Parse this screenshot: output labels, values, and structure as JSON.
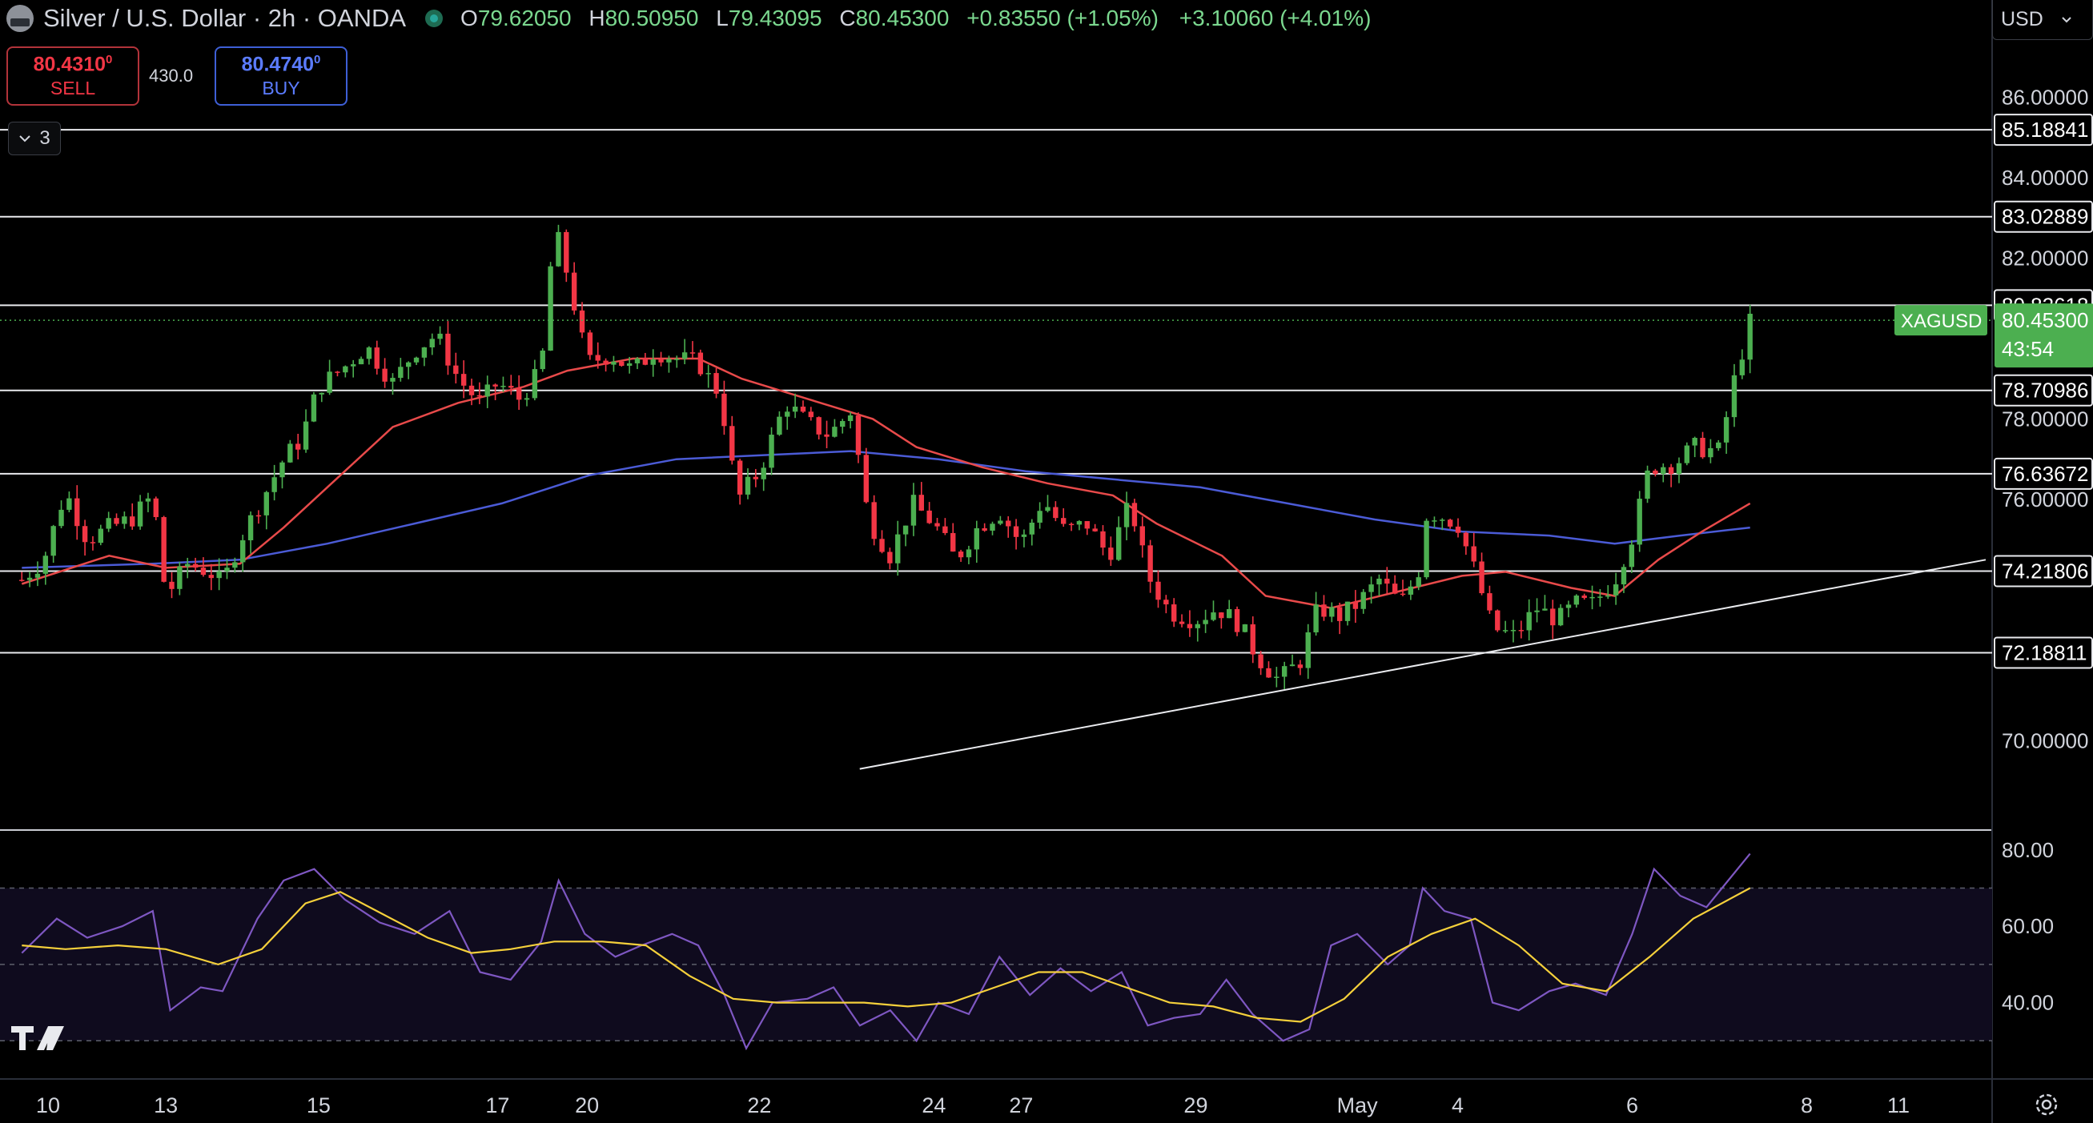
{
  "header": {
    "title": "Silver / U.S. Dollar · 2h · OANDA",
    "ohlc": [
      {
        "k": "O",
        "v": "79.62050"
      },
      {
        "k": "H",
        "v": "80.50950"
      },
      {
        "k": "L",
        "v": "79.43095"
      },
      {
        "k": "C",
        "v": "80.45300"
      }
    ],
    "change": "+0.83550 (+1.05%)",
    "change2": "+3.10060 (+4.01%)"
  },
  "trade": {
    "sell_price": "80.4310",
    "sell_price_sup": "0",
    "sell_label": "SELL",
    "spread": "430.0",
    "buy_price": "80.4740",
    "buy_price_sup": "0",
    "buy_label": "BUY"
  },
  "indicators_toggle": {
    "count": "3",
    "icon": "chevron-down-icon"
  },
  "currency_select": {
    "value": "USD",
    "icon": "chevron-down-icon"
  },
  "colors": {
    "up": "#4caf50",
    "down": "#f23645",
    "ma_fast": "#e84a4a",
    "ma_slow": "#4b5bd6",
    "rsi": "#7e57c2",
    "rsi_ma": "#f5d03b",
    "price_tag": "#4caf50"
  },
  "chart_data": {
    "type": "line",
    "title": "Silver / U.S. Dollar · 2h · OANDA",
    "symbol": "XAGUSD",
    "last_price": "80.45300",
    "countdown": "43:54",
    "ylim": [
      67.8,
      87.5
    ],
    "y_ticks": [
      "86.00000",
      "84.00000",
      "82.00000",
      "78.00000",
      "76.00000",
      "70.00000"
    ],
    "x_ticks": [
      {
        "label": "10",
        "t": 0.6
      },
      {
        "label": "13",
        "t": 3.3
      },
      {
        "label": "15",
        "t": 6.8
      },
      {
        "label": "17",
        "t": 10.9
      },
      {
        "label": "20",
        "t": 12.95
      },
      {
        "label": "22",
        "t": 16.9
      },
      {
        "label": "24",
        "t": 20.9
      },
      {
        "label": "27",
        "t": 22.9
      },
      {
        "label": "29",
        "t": 26.9
      },
      {
        "label": "May",
        "t": 30.6
      },
      {
        "label": "4",
        "t": 32.9
      },
      {
        "label": "6",
        "t": 36.9
      },
      {
        "label": "8",
        "t": 40.9
      },
      {
        "label": "11",
        "t": 43.0
      }
    ],
    "t_range": [
      -0.5,
      45.0
    ],
    "horizontal_levels": [
      "85.18841",
      "83.02889",
      "80.82618",
      "78.70986",
      "76.63672",
      "74.21806",
      "72.18811"
    ],
    "trendline": {
      "start": [
        19.2,
        69.3
      ],
      "end": [
        45.0,
        74.5
      ]
    },
    "price_path": [
      [
        0,
        74.0
      ],
      [
        0.5,
        74.5
      ],
      [
        1.0,
        76.2
      ],
      [
        1.5,
        75.0
      ],
      [
        2.0,
        75.3
      ],
      [
        2.5,
        75.5
      ],
      [
        3.0,
        76.1
      ],
      [
        3.3,
        73.6
      ],
      [
        3.8,
        74.4
      ],
      [
        4.3,
        74.2
      ],
      [
        4.6,
        73.9
      ],
      [
        5.0,
        75.0
      ],
      [
        5.5,
        76.0
      ],
      [
        6.0,
        77.0
      ],
      [
        6.4,
        77.5
      ],
      [
        6.8,
        78.8
      ],
      [
        7.4,
        79.3
      ],
      [
        7.9,
        79.8
      ],
      [
        8.5,
        78.9
      ],
      [
        9.0,
        79.7
      ],
      [
        9.5,
        80.1
      ],
      [
        10.0,
        79.0
      ],
      [
        10.5,
        78.4
      ],
      [
        10.9,
        78.9
      ],
      [
        11.4,
        78.5
      ],
      [
        11.9,
        79.2
      ],
      [
        12.2,
        82.8
      ],
      [
        12.5,
        81.6
      ],
      [
        12.95,
        79.4
      ],
      [
        13.5,
        79.6
      ],
      [
        14.0,
        79.2
      ],
      [
        14.5,
        79.7
      ],
      [
        15.0,
        79.5
      ],
      [
        15.5,
        79.4
      ],
      [
        16.0,
        78.6
      ],
      [
        16.4,
        76.0
      ],
      [
        16.9,
        76.7
      ],
      [
        17.5,
        78.4
      ],
      [
        18.0,
        77.9
      ],
      [
        18.5,
        77.6
      ],
      [
        19.0,
        78.2
      ],
      [
        19.4,
        75.5
      ],
      [
        19.9,
        74.6
      ],
      [
        20.4,
        75.9
      ],
      [
        20.9,
        75.4
      ],
      [
        21.4,
        74.5
      ],
      [
        21.9,
        75.3
      ],
      [
        22.4,
        75.7
      ],
      [
        22.9,
        74.9
      ],
      [
        23.4,
        76.0
      ],
      [
        23.9,
        75.2
      ],
      [
        24.4,
        75.4
      ],
      [
        24.9,
        74.6
      ],
      [
        25.4,
        75.9
      ],
      [
        25.8,
        74.1
      ],
      [
        26.3,
        73.2
      ],
      [
        26.9,
        73.0
      ],
      [
        27.4,
        73.3
      ],
      [
        27.9,
        72.9
      ],
      [
        28.3,
        72.1
      ],
      [
        28.8,
        71.5
      ],
      [
        29.3,
        72.0
      ],
      [
        29.7,
        73.3
      ],
      [
        30.2,
        73.1
      ],
      [
        30.6,
        73.4
      ],
      [
        31.1,
        74.0
      ],
      [
        31.6,
        73.4
      ],
      [
        32.0,
        74.2
      ],
      [
        32.2,
        75.7
      ],
      [
        32.5,
        75.6
      ],
      [
        32.9,
        75.4
      ],
      [
        33.3,
        74.2
      ],
      [
        33.7,
        72.8
      ],
      [
        34.2,
        72.6
      ],
      [
        34.7,
        73.3
      ],
      [
        35.2,
        73.0
      ],
      [
        35.6,
        73.4
      ],
      [
        36.0,
        73.4
      ],
      [
        36.5,
        74.0
      ],
      [
        36.9,
        75.1
      ],
      [
        37.3,
        76.8
      ],
      [
        37.9,
        76.9
      ],
      [
        38.3,
        77.3
      ],
      [
        38.9,
        77.2
      ],
      [
        39.2,
        78.8
      ],
      [
        39.6,
        80.4
      ]
    ],
    "ma_fast": [
      [
        0,
        73.9
      ],
      [
        2,
        74.6
      ],
      [
        3.3,
        74.3
      ],
      [
        5,
        74.4
      ],
      [
        6,
        75.3
      ],
      [
        7,
        76.3
      ],
      [
        8.5,
        77.8
      ],
      [
        10.0,
        78.4
      ],
      [
        11.5,
        78.8
      ],
      [
        12.5,
        79.2
      ],
      [
        14.0,
        79.5
      ],
      [
        15.5,
        79.5
      ],
      [
        16.5,
        79.0
      ],
      [
        18.0,
        78.5
      ],
      [
        19.5,
        78.0
      ],
      [
        20.5,
        77.3
      ],
      [
        22.0,
        76.8
      ],
      [
        23.5,
        76.4
      ],
      [
        25.0,
        76.1
      ],
      [
        26.0,
        75.4
      ],
      [
        27.5,
        74.6
      ],
      [
        28.5,
        73.6
      ],
      [
        30.0,
        73.3
      ],
      [
        31.5,
        73.7
      ],
      [
        33.0,
        74.1
      ],
      [
        34.0,
        74.2
      ],
      [
        35.5,
        73.8
      ],
      [
        36.5,
        73.6
      ],
      [
        37.5,
        74.5
      ],
      [
        38.5,
        75.2
      ],
      [
        39.6,
        75.9
      ]
    ],
    "ma_slow": [
      [
        0,
        74.3
      ],
      [
        3,
        74.4
      ],
      [
        5,
        74.5
      ],
      [
        7,
        74.9
      ],
      [
        9,
        75.4
      ],
      [
        11,
        75.9
      ],
      [
        13,
        76.6
      ],
      [
        15,
        77.0
      ],
      [
        17,
        77.1
      ],
      [
        19,
        77.2
      ],
      [
        21,
        77.0
      ],
      [
        23,
        76.7
      ],
      [
        25,
        76.5
      ],
      [
        27,
        76.3
      ],
      [
        29,
        75.9
      ],
      [
        31,
        75.5
      ],
      [
        33,
        75.2
      ],
      [
        35,
        75.1
      ],
      [
        36.5,
        74.9
      ],
      [
        38,
        75.1
      ],
      [
        39.6,
        75.3
      ]
    ],
    "rsi": {
      "ylim": [
        20,
        85
      ],
      "y_ticks": [
        "80.00",
        "60.00",
        "40.00"
      ],
      "bands": [
        70,
        50,
        30
      ],
      "values": [
        [
          0,
          53
        ],
        [
          0.8,
          62
        ],
        [
          1.5,
          57
        ],
        [
          2.3,
          60
        ],
        [
          3.0,
          64
        ],
        [
          3.4,
          38
        ],
        [
          4.1,
          44
        ],
        [
          4.6,
          43
        ],
        [
          5.4,
          62
        ],
        [
          6.0,
          72
        ],
        [
          6.7,
          75
        ],
        [
          7.4,
          67
        ],
        [
          8.2,
          61
        ],
        [
          9.0,
          58
        ],
        [
          9.8,
          64
        ],
        [
          10.5,
          48
        ],
        [
          11.2,
          46
        ],
        [
          11.9,
          56
        ],
        [
          12.3,
          72
        ],
        [
          12.9,
          58
        ],
        [
          13.6,
          52
        ],
        [
          14.2,
          55
        ],
        [
          14.9,
          58
        ],
        [
          15.5,
          55
        ],
        [
          16.1,
          42
        ],
        [
          16.6,
          28
        ],
        [
          17.2,
          40
        ],
        [
          18.0,
          41
        ],
        [
          18.6,
          44
        ],
        [
          19.2,
          34
        ],
        [
          19.9,
          38
        ],
        [
          20.5,
          30
        ],
        [
          21.0,
          40
        ],
        [
          21.7,
          37
        ],
        [
          22.4,
          52
        ],
        [
          23.1,
          42
        ],
        [
          23.8,
          49
        ],
        [
          24.5,
          43
        ],
        [
          25.2,
          48
        ],
        [
          25.8,
          34
        ],
        [
          26.4,
          36
        ],
        [
          27.0,
          37
        ],
        [
          27.6,
          46
        ],
        [
          28.2,
          37
        ],
        [
          28.9,
          30
        ],
        [
          29.5,
          33
        ],
        [
          30.0,
          55
        ],
        [
          30.6,
          58
        ],
        [
          31.3,
          50
        ],
        [
          31.8,
          55
        ],
        [
          32.1,
          70
        ],
        [
          32.6,
          64
        ],
        [
          33.2,
          62
        ],
        [
          33.7,
          40
        ],
        [
          34.3,
          38
        ],
        [
          35.0,
          43
        ],
        [
          35.6,
          45
        ],
        [
          36.3,
          42
        ],
        [
          36.9,
          58
        ],
        [
          37.4,
          75
        ],
        [
          38.0,
          68
        ],
        [
          38.6,
          65
        ],
        [
          39.1,
          72
        ],
        [
          39.6,
          79
        ]
      ],
      "ma_values": [
        [
          0,
          55
        ],
        [
          1.0,
          54
        ],
        [
          2.2,
          55
        ],
        [
          3.3,
          54
        ],
        [
          4.5,
          50
        ],
        [
          5.5,
          54
        ],
        [
          6.5,
          66
        ],
        [
          7.3,
          69
        ],
        [
          8.3,
          63
        ],
        [
          9.3,
          57
        ],
        [
          10.3,
          53
        ],
        [
          11.2,
          54
        ],
        [
          12.2,
          56
        ],
        [
          13.3,
          56
        ],
        [
          14.3,
          55
        ],
        [
          15.3,
          47
        ],
        [
          16.3,
          41
        ],
        [
          17.3,
          40
        ],
        [
          18.3,
          40
        ],
        [
          19.3,
          40
        ],
        [
          20.3,
          39
        ],
        [
          21.3,
          40
        ],
        [
          22.3,
          44
        ],
        [
          23.3,
          48
        ],
        [
          24.3,
          48
        ],
        [
          25.3,
          44
        ],
        [
          26.3,
          40
        ],
        [
          27.3,
          39
        ],
        [
          28.3,
          36
        ],
        [
          29.3,
          35
        ],
        [
          30.3,
          41
        ],
        [
          31.3,
          52
        ],
        [
          32.3,
          58
        ],
        [
          33.3,
          62
        ],
        [
          34.3,
          55
        ],
        [
          35.3,
          45
        ],
        [
          36.3,
          43
        ],
        [
          37.3,
          52
        ],
        [
          38.3,
          62
        ],
        [
          39.6,
          70
        ]
      ]
    }
  }
}
